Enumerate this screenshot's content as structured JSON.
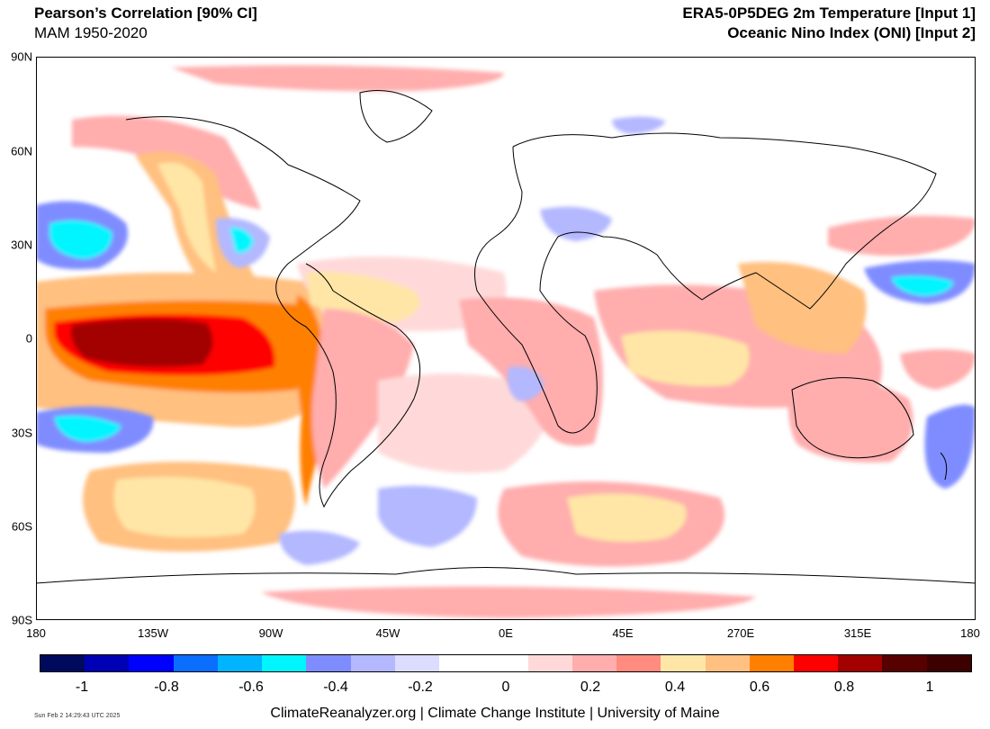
{
  "header": {
    "title_left": "Pearson’s Correlation [90% CI]",
    "subtitle_left": "MAM 1950-2020",
    "title_right": "ERA5-0P5DEG 2m Temperature [Input 1]",
    "subtitle_right": "Oceanic Nino Index (ONI) [Input 2]"
  },
  "map": {
    "lat_labels": [
      "90N",
      "60N",
      "30N",
      "0",
      "30S",
      "60S",
      "90S"
    ],
    "lon_labels": [
      "180",
      "135W",
      "90W",
      "45W",
      "0E",
      "45E",
      "270E",
      "315E",
      "180"
    ]
  },
  "colorbar": {
    "colors": [
      "#000a5c",
      "#0000b4",
      "#0000ff",
      "#0a6eff",
      "#00b4ff",
      "#00f5ff",
      "#7f8cff",
      "#b3b8ff",
      "#dcdcff",
      "#ffffff",
      "#ffffff",
      "#ffd9d9",
      "#ffadad",
      "#ff8c7f",
      "#ffe6a6",
      "#ffc080",
      "#ff8000",
      "#ff0000",
      "#a30000",
      "#560000",
      "#3d0000"
    ],
    "labels": [
      "-1",
      "-0.8",
      "-0.6",
      "-0.4",
      "-0.2",
      "0",
      "0.2",
      "0.4",
      "0.6",
      "0.8",
      "1"
    ]
  },
  "footer": {
    "timestamp": "Sun Feb  2 14:29:43 UTC 2025",
    "credits": "ClimateReanalyzer.org | Climate Change Institute | University of Maine"
  }
}
